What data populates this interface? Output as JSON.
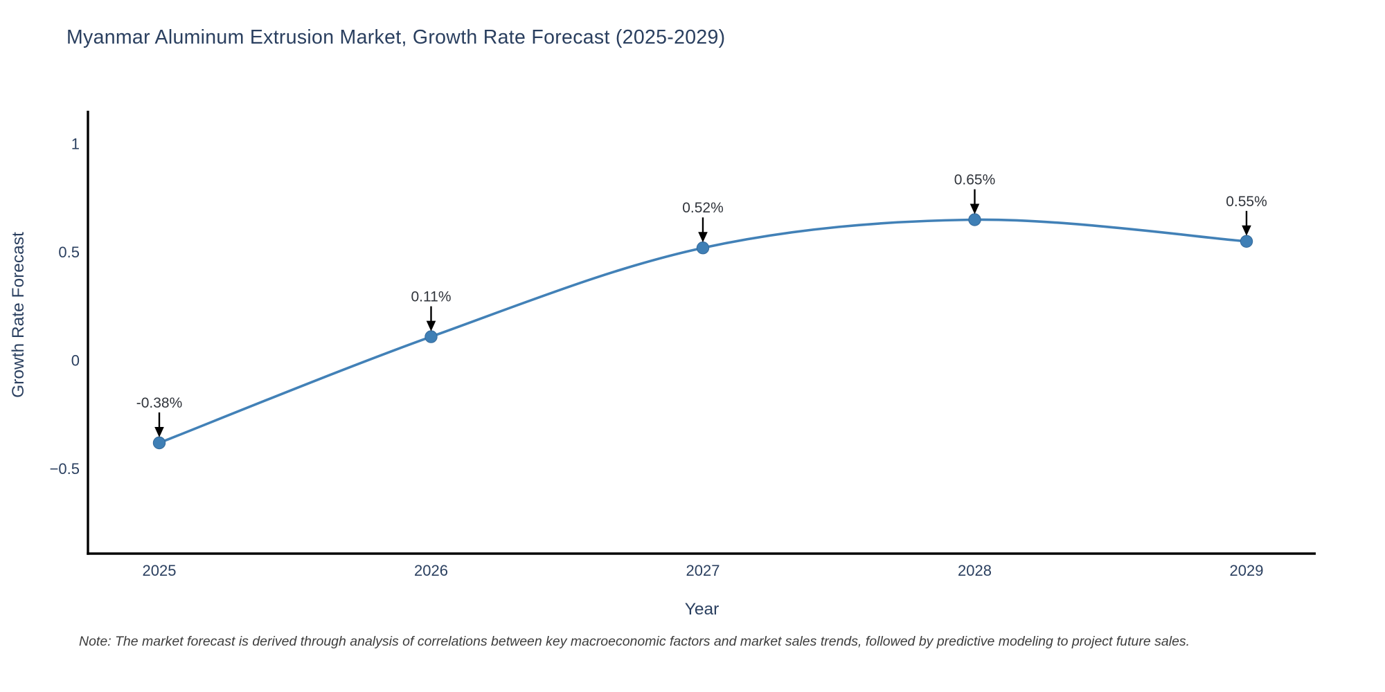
{
  "title": "Myanmar Aluminum Extrusion Market, Growth Rate Forecast (2025-2029)",
  "note": "Note: The market forecast is derived through analysis of correlations between key macroeconomic factors and market sales trends, followed by predictive modeling to project future sales.",
  "chart_data": {
    "type": "line",
    "line_shape": "spline",
    "title": "Myanmar Aluminum Extrusion Market, Growth Rate Forecast (2025-2029)",
    "xlabel": "Year",
    "ylabel": "Growth Rate Forecast",
    "categories": [
      "2025",
      "2026",
      "2027",
      "2028",
      "2029"
    ],
    "values": [
      -0.38,
      0.11,
      0.52,
      0.65,
      0.55
    ],
    "point_labels": [
      "-0.38%",
      "0.11%",
      "0.52%",
      "0.65%",
      "0.55%"
    ],
    "yticks": {
      "values": [
        1,
        0.5,
        0,
        -0.5
      ],
      "labels": [
        "1",
        "0.5",
        "0",
        "−0.5"
      ]
    },
    "ylim": [
      -0.891,
      1.153
    ],
    "grid": false,
    "legend": "none",
    "markers": true,
    "annotation_arrows": true,
    "colors": {
      "line": "#4281b7",
      "marker": "#3f7fb5",
      "marker_edge": "#34699a",
      "axis_line": "#000000",
      "label_text": "#2a3f5f",
      "annotation_text": "#30343b",
      "arrow": "#000000",
      "note_text": "#3d3d3d",
      "background": "#ffffff"
    }
  }
}
